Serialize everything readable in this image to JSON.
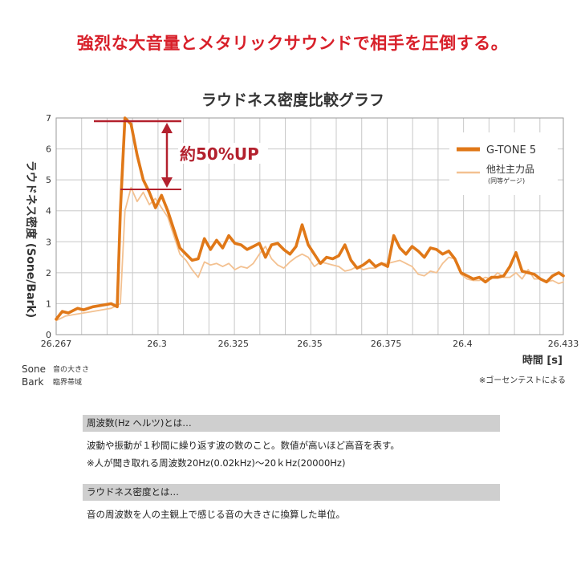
{
  "headline": "強烈な大音量とメタリックサウンドで相手を圧倒する。",
  "chart_data": {
    "type": "line",
    "title": "ラウドネス密度比較グラフ",
    "ylabel": "ラウドネス密度 (Sone/Bark)",
    "xlabel": "時間 [s]",
    "ylim": [
      0,
      7
    ],
    "xlim": [
      26.267,
      26.433
    ],
    "y_ticks": [
      "0",
      "1",
      "2",
      "3",
      "4",
      "5",
      "6",
      "7"
    ],
    "x_tick_values": [
      26.267,
      26.3,
      26.325,
      26.35,
      26.375,
      26.4,
      26.433
    ],
    "x_tick_labels": [
      "26.267",
      "26.3",
      "26.325",
      "26.35",
      "26.375",
      "26.4",
      "26.433"
    ],
    "grid": true,
    "legend_position": "top-right",
    "annotation": "約50%UP",
    "series": [
      {
        "name": "G-TONE 5",
        "color": "#e07818",
        "x": [
          26.267,
          26.269,
          26.271,
          26.274,
          26.276,
          26.279,
          26.282,
          26.285,
          26.287,
          26.288,
          26.2895,
          26.2915,
          26.2935,
          26.2955,
          26.2975,
          26.2995,
          26.3015,
          26.3035,
          26.3055,
          26.3075,
          26.3095,
          26.3115,
          26.3135,
          26.3155,
          26.3175,
          26.3195,
          26.3215,
          26.3235,
          26.3255,
          26.3275,
          26.3295,
          26.3315,
          26.3335,
          26.3355,
          26.3375,
          26.3395,
          26.3415,
          26.3435,
          26.3455,
          26.3475,
          26.3495,
          26.3515,
          26.3535,
          26.3555,
          26.3575,
          26.3595,
          26.3615,
          26.3635,
          26.3655,
          26.3675,
          26.3695,
          26.3715,
          26.3735,
          26.3755,
          26.3775,
          26.3795,
          26.3815,
          26.3835,
          26.3855,
          26.3875,
          26.3895,
          26.3915,
          26.3935,
          26.3955,
          26.3975,
          26.3995,
          26.4015,
          26.4035,
          26.4055,
          26.4075,
          26.4095,
          26.4115,
          26.4135,
          26.4155,
          26.4175,
          26.4195,
          26.4215,
          26.4235,
          26.4255,
          26.4275,
          26.4295,
          26.4315,
          26.433
        ],
        "values": [
          0.5,
          0.75,
          0.7,
          0.85,
          0.8,
          0.9,
          0.95,
          1.0,
          0.9,
          4.0,
          7.0,
          6.8,
          5.8,
          5.0,
          4.6,
          4.1,
          4.5,
          4.0,
          3.4,
          2.8,
          2.6,
          2.4,
          2.45,
          3.1,
          2.75,
          3.05,
          2.8,
          3.2,
          2.95,
          2.9,
          2.75,
          2.85,
          2.95,
          2.5,
          2.9,
          2.95,
          2.75,
          2.6,
          2.85,
          3.55,
          2.9,
          2.6,
          2.3,
          2.5,
          2.45,
          2.55,
          2.9,
          2.4,
          2.15,
          2.25,
          2.4,
          2.2,
          2.3,
          2.2,
          3.2,
          2.8,
          2.6,
          2.85,
          2.7,
          2.5,
          2.8,
          2.75,
          2.6,
          2.7,
          2.45,
          2.0,
          1.9,
          1.8,
          1.85,
          1.7,
          1.85,
          1.85,
          1.9,
          2.2,
          2.65,
          2.05,
          2.0,
          1.95,
          1.8,
          1.7,
          1.9,
          2.0,
          1.9
        ]
      },
      {
        "name": "他社主力品",
        "sublabel": "(同等ゲージ)",
        "color": "#f3c191",
        "x": [
          26.267,
          26.27,
          26.273,
          26.276,
          26.279,
          26.282,
          26.285,
          26.288,
          26.2895,
          26.2915,
          26.2935,
          26.2955,
          26.2975,
          26.2995,
          26.3015,
          26.3035,
          26.3055,
          26.3075,
          26.3095,
          26.3115,
          26.3135,
          26.3155,
          26.3175,
          26.3195,
          26.3215,
          26.3235,
          26.3255,
          26.3275,
          26.3295,
          26.3315,
          26.3335,
          26.3355,
          26.3375,
          26.3395,
          26.3415,
          26.3435,
          26.3455,
          26.3475,
          26.3495,
          26.3515,
          26.3535,
          26.3555,
          26.3575,
          26.3595,
          26.3615,
          26.3635,
          26.3655,
          26.3675,
          26.3695,
          26.3715,
          26.3735,
          26.3755,
          26.3775,
          26.3795,
          26.3815,
          26.3835,
          26.3855,
          26.3875,
          26.3895,
          26.3915,
          26.3935,
          26.3955,
          26.3975,
          26.3995,
          26.4015,
          26.4035,
          26.4055,
          26.4075,
          26.4095,
          26.4115,
          26.4135,
          26.4155,
          26.4175,
          26.4195,
          26.4215,
          26.4235,
          26.4255,
          26.4275,
          26.4295,
          26.4315,
          26.433
        ],
        "values": [
          0.45,
          0.6,
          0.65,
          0.7,
          0.75,
          0.8,
          0.85,
          1.0,
          4.0,
          4.75,
          4.3,
          4.6,
          4.2,
          4.4,
          4.1,
          3.8,
          3.2,
          2.6,
          2.4,
          2.1,
          1.85,
          2.35,
          2.25,
          2.3,
          2.2,
          2.3,
          2.1,
          2.2,
          2.15,
          2.3,
          2.6,
          2.85,
          2.45,
          2.25,
          2.15,
          2.35,
          2.5,
          2.6,
          2.5,
          2.2,
          2.35,
          2.3,
          2.25,
          2.2,
          2.05,
          2.1,
          2.2,
          2.1,
          2.15,
          2.15,
          2.3,
          2.3,
          2.35,
          2.4,
          2.3,
          2.2,
          1.95,
          1.9,
          2.05,
          2.0,
          2.3,
          2.5,
          2.45,
          1.95,
          1.8,
          1.75,
          1.75,
          1.85,
          1.8,
          2.0,
          1.85,
          1.85,
          2.0,
          1.8,
          2.1,
          1.8,
          1.8,
          1.7,
          1.75,
          1.65,
          1.7
        ]
      }
    ]
  },
  "notes": {
    "sone_term": "Sone",
    "sone_desc": "音の大きさ",
    "bark_term": "Bark",
    "bark_desc": "臨界帯域",
    "source": "※ゴーセンテストによる"
  },
  "info": {
    "freq_title": "周波数(Hz ヘルツ)とは…",
    "freq_line1": "波動や振動が１秒間に繰り返す波の数のこと。数値が高いほど高音を表す。",
    "freq_line2": "※人が聞き取れる周波数20Hz(0.02kHz)〜20ｋHz(20000Hz)",
    "loud_title": "ラウドネス密度とは…",
    "loud_line1": "音の周波数を人の主観上で感じる音の大きさに換算した単位。"
  }
}
